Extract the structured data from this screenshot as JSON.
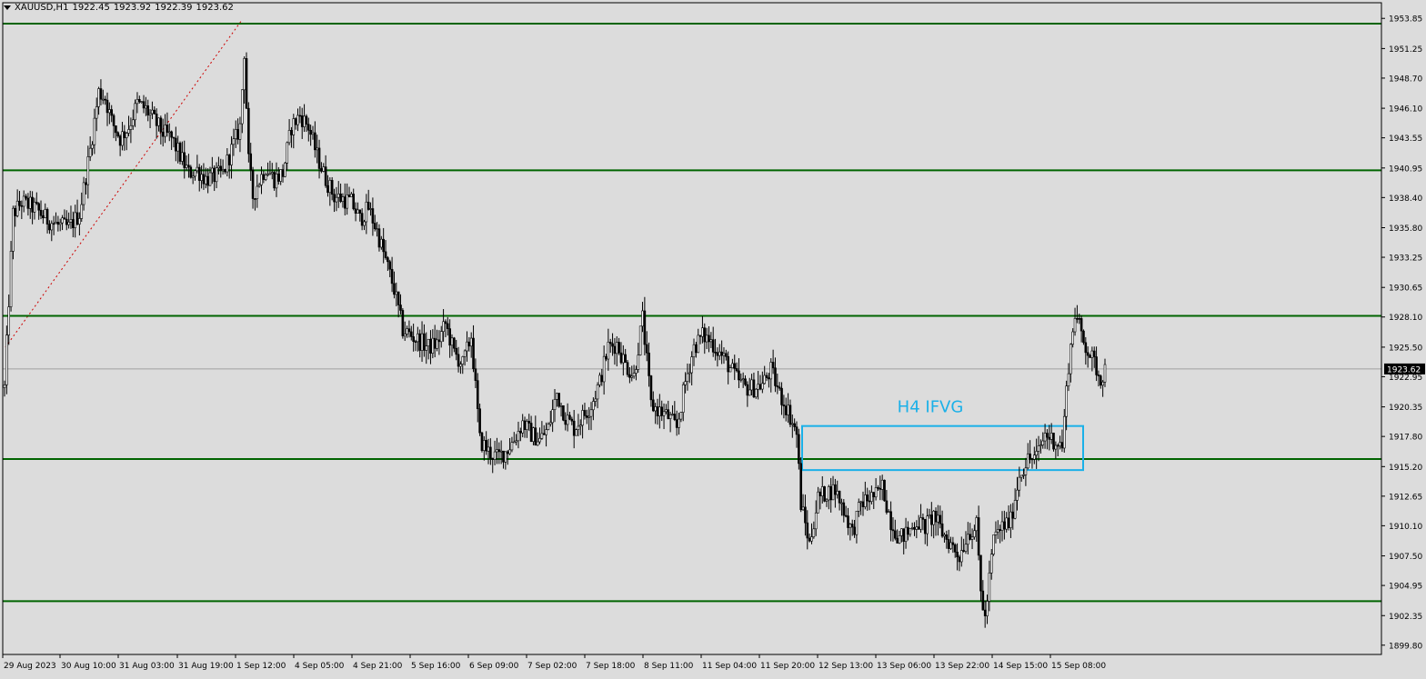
{
  "header": {
    "symbol": "XAUUSD,H1",
    "open": "1922.45",
    "high": "1923.92",
    "low": "1922.39",
    "close": "1923.62"
  },
  "colors": {
    "background": "#dcdcdc",
    "levels": "#006400",
    "fvg": "#1ab0e8",
    "trend": "#cc0000",
    "candle": "#000000",
    "current_price_line": "#a0a0a0"
  },
  "chart_data": {
    "type": "candlestick",
    "title": "XAUUSD,H1",
    "y_ticks": [
      "1953.85",
      "1951.25",
      "1948.70",
      "1946.10",
      "1943.55",
      "1940.95",
      "1938.40",
      "1935.80",
      "1933.25",
      "1930.65",
      "1928.10",
      "1925.50",
      "1922.95",
      "1920.35",
      "1917.80",
      "1915.20",
      "1912.65",
      "1910.10",
      "1907.50",
      "1904.95",
      "1902.35",
      "1899.80"
    ],
    "x_ticks": [
      "29 Aug 2023",
      "30 Aug 10:00",
      "31 Aug 03:00",
      "31 Aug 19:00",
      "1 Sep 12:00",
      "4 Sep 05:00",
      "4 Sep 21:00",
      "5 Sep 16:00",
      "6 Sep 09:00",
      "7 Sep 02:00",
      "7 Sep 18:00",
      "8 Sep 11:00",
      "11 Sep 04:00",
      "11 Sep 20:00",
      "12 Sep 13:00",
      "13 Sep 06:00",
      "13 Sep 22:00",
      "14 Sep 15:00",
      "15 Sep 08:00"
    ],
    "ylim": [
      1899.0,
      1955.2
    ],
    "current_price": "1923.62",
    "horizontal_levels": [
      1953.4,
      1940.75,
      1928.2,
      1915.85,
      1903.6
    ],
    "zone": {
      "label": "H4 IFVG",
      "top": 1918.7,
      "bottom": 1914.9,
      "start": "12 Sep 13:00",
      "end": "15 Sep 08:00"
    },
    "price_path": [
      [
        0,
        1922.0
      ],
      [
        4,
        1937.0
      ],
      [
        8,
        1938.0
      ],
      [
        14,
        1937.5
      ],
      [
        20,
        1936.5
      ],
      [
        25,
        1936.0
      ],
      [
        30,
        1935.8
      ],
      [
        35,
        1937.0
      ],
      [
        40,
        1942.5
      ],
      [
        44,
        1947.5
      ],
      [
        47,
        1947.0
      ],
      [
        50,
        1945.0
      ],
      [
        54,
        1943.5
      ],
      [
        58,
        1944.5
      ],
      [
        62,
        1946.5
      ],
      [
        66,
        1946.0
      ],
      [
        70,
        1945.0
      ],
      [
        74,
        1944.0
      ],
      [
        78,
        1943.5
      ],
      [
        82,
        1942.0
      ],
      [
        86,
        1940.5
      ],
      [
        90,
        1940.8
      ],
      [
        94,
        1940.0
      ],
      [
        98,
        1940.2
      ],
      [
        102,
        1940.5
      ],
      [
        106,
        1942.5
      ],
      [
        110,
        1944.5
      ],
      [
        112,
        1951.0
      ],
      [
        114,
        1941.5
      ],
      [
        116,
        1938.5
      ],
      [
        118,
        1939.5
      ],
      [
        122,
        1941.0
      ],
      [
        126,
        1940.0
      ],
      [
        130,
        1940.5
      ],
      [
        134,
        1944.5
      ],
      [
        138,
        1945.5
      ],
      [
        142,
        1944.5
      ],
      [
        146,
        1942.0
      ],
      [
        150,
        1940.0
      ],
      [
        154,
        1938.5
      ],
      [
        158,
        1938.3
      ],
      [
        162,
        1938.0
      ],
      [
        166,
        1936.5
      ],
      [
        170,
        1937.5
      ],
      [
        174,
        1935.5
      ],
      [
        178,
        1933.0
      ],
      [
        182,
        1930.5
      ],
      [
        186,
        1927.0
      ],
      [
        190,
        1926.5
      ],
      [
        194,
        1926.0
      ],
      [
        198,
        1925.5
      ],
      [
        202,
        1925.8
      ],
      [
        206,
        1927.5
      ],
      [
        210,
        1925.0
      ],
      [
        214,
        1924.0
      ],
      [
        218,
        1926.5
      ],
      [
        222,
        1917.5
      ],
      [
        226,
        1916.5
      ],
      [
        230,
        1916.0
      ],
      [
        234,
        1916.5
      ],
      [
        238,
        1917.5
      ],
      [
        242,
        1919.0
      ],
      [
        246,
        1918.0
      ],
      [
        250,
        1917.5
      ],
      [
        254,
        1918.5
      ],
      [
        258,
        1921.5
      ],
      [
        262,
        1919.5
      ],
      [
        266,
        1918.5
      ],
      [
        270,
        1919.5
      ],
      [
        274,
        1920.5
      ],
      [
        278,
        1922.5
      ],
      [
        282,
        1925.5
      ],
      [
        286,
        1925.8
      ],
      [
        290,
        1924.0
      ],
      [
        294,
        1923.0
      ],
      [
        298,
        1928.0
      ],
      [
        302,
        1920.5
      ],
      [
        306,
        1920.0
      ],
      [
        310,
        1919.5
      ],
      [
        314,
        1918.5
      ],
      [
        318,
        1922.5
      ],
      [
        322,
        1925.5
      ],
      [
        326,
        1926.5
      ],
      [
        330,
        1926.0
      ],
      [
        334,
        1925.0
      ],
      [
        338,
        1924.0
      ],
      [
        342,
        1922.8
      ],
      [
        346,
        1922.0
      ],
      [
        350,
        1922.0
      ],
      [
        354,
        1922.3
      ],
      [
        358,
        1923.5
      ],
      [
        362,
        1921.5
      ],
      [
        366,
        1920.0
      ],
      [
        370,
        1918.0
      ],
      [
        372,
        1912.0
      ],
      [
        376,
        1908.5
      ],
      [
        380,
        1912.5
      ],
      [
        384,
        1913.0
      ],
      [
        388,
        1913.2
      ],
      [
        392,
        1911.5
      ],
      [
        396,
        1909.5
      ],
      [
        400,
        1912.0
      ],
      [
        404,
        1912.5
      ],
      [
        408,
        1912.8
      ],
      [
        410,
        1913.5
      ],
      [
        414,
        1910.5
      ],
      [
        418,
        1909.0
      ],
      [
        422,
        1909.5
      ],
      [
        426,
        1910.5
      ],
      [
        430,
        1910.0
      ],
      [
        434,
        1911.0
      ],
      [
        438,
        1909.5
      ],
      [
        442,
        1908.5
      ],
      [
        446,
        1907.5
      ],
      [
        450,
        1909.5
      ],
      [
        454,
        1910.0
      ],
      [
        456,
        1904.5
      ],
      [
        458,
        1902.0
      ],
      [
        462,
        1909.0
      ],
      [
        466,
        1910.0
      ],
      [
        470,
        1910.5
      ],
      [
        474,
        1914.5
      ],
      [
        478,
        1915.8
      ],
      [
        482,
        1916.0
      ],
      [
        486,
        1918.0
      ],
      [
        490,
        1917.5
      ],
      [
        494,
        1917.0
      ],
      [
        497,
        1924.0
      ],
      [
        500,
        1928.5
      ],
      [
        504,
        1926.0
      ],
      [
        508,
        1924.5
      ],
      [
        512,
        1922.8
      ],
      [
        514,
        1923.6
      ]
    ]
  }
}
